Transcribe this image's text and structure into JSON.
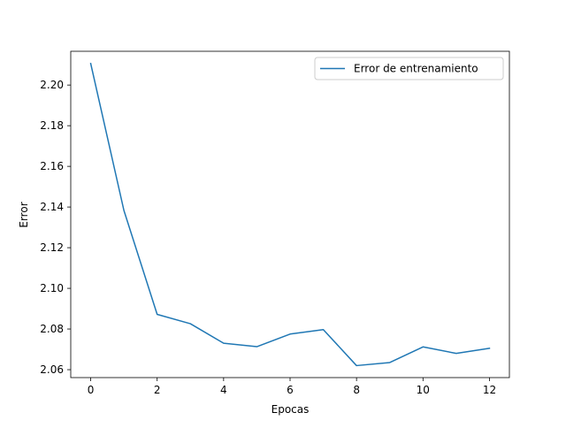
{
  "chart_data": {
    "type": "line",
    "title": "",
    "xlabel": "Epocas",
    "ylabel": "Error",
    "xlim": [
      -0.6,
      12.6
    ],
    "ylim": [
      2.0561,
      2.2166
    ],
    "xticks": [
      0,
      2,
      4,
      6,
      8,
      10,
      12
    ],
    "yticks": [
      2.06,
      2.08,
      2.1,
      2.12,
      2.14,
      2.16,
      2.18,
      2.2
    ],
    "ytick_labels": [
      "2.06",
      "2.08",
      "2.10",
      "2.12",
      "2.14",
      "2.16",
      "2.18",
      "2.20"
    ],
    "grid": false,
    "legend_position": "top-right",
    "series": [
      {
        "name": "Error de entrenamiento",
        "color": "#1f77b4",
        "x": [
          0,
          1,
          2,
          3,
          4,
          5,
          6,
          7,
          8,
          9,
          10,
          11,
          12
        ],
        "values": [
          2.2106,
          2.1383,
          2.0872,
          2.0826,
          2.073,
          2.0713,
          2.0775,
          2.0797,
          2.062,
          2.0635,
          2.0712,
          2.068,
          2.0705
        ]
      }
    ]
  }
}
